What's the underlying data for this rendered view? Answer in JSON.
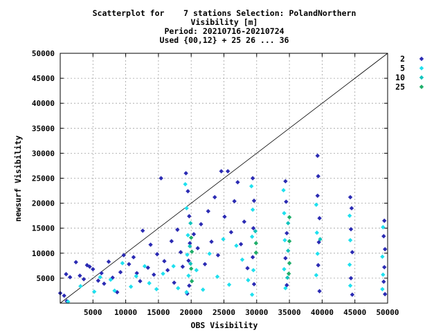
{
  "chart_data": {
    "type": "scatter",
    "title_lines": [
      "Scatterplot for    7 stations Selection: PolandNorthern",
      "Visibility [m]",
      "Period: 20210716-20210724",
      "Used {00,12} + 25 26 ... 36"
    ],
    "xlabel": "OBS Visibility",
    "ylabel": "newsurf Visibility",
    "xlim": [
      0,
      50000
    ],
    "ylim": [
      0,
      50000
    ],
    "x_ticks": [
      5000,
      10000,
      15000,
      20000,
      25000,
      30000,
      35000,
      40000,
      45000,
      50000
    ],
    "y_ticks": [
      5000,
      10000,
      15000,
      20000,
      25000,
      30000,
      35000,
      40000,
      45000,
      50000
    ],
    "x_tick_labels": [
      "5000",
      "10000",
      "15000",
      "20000",
      "25000",
      "30000",
      "35000",
      "40000",
      "45000",
      "50000"
    ],
    "y_tick_labels": [
      "5000",
      "10000",
      "15000",
      "20000",
      "25000",
      "30000",
      "35000",
      "40000",
      "45000",
      "50000"
    ],
    "grid": true,
    "reference_line": "y = x",
    "legend_position": "right, outside top",
    "series": [
      {
        "name": "2",
        "color": "#2b2bb3",
        "points": [
          [
            0,
            2000
          ],
          [
            600,
            1500
          ],
          [
            1000,
            400
          ],
          [
            900,
            5800
          ],
          [
            1500,
            5200
          ],
          [
            2400,
            8200
          ],
          [
            3000,
            5500
          ],
          [
            3600,
            4800
          ],
          [
            4100,
            7600
          ],
          [
            4500,
            7300
          ],
          [
            5000,
            6800
          ],
          [
            5800,
            4500
          ],
          [
            6300,
            6000
          ],
          [
            6700,
            3900
          ],
          [
            7400,
            8300
          ],
          [
            8000,
            5100
          ],
          [
            8700,
            2200
          ],
          [
            9200,
            6200
          ],
          [
            9700,
            9600
          ],
          [
            10500,
            7800
          ],
          [
            11200,
            9200
          ],
          [
            11700,
            6000
          ],
          [
            12200,
            4400
          ],
          [
            12600,
            14500
          ],
          [
            13400,
            7100
          ],
          [
            13800,
            11700
          ],
          [
            14300,
            5700
          ],
          [
            14800,
            9800
          ],
          [
            15400,
            25000
          ],
          [
            15900,
            8400
          ],
          [
            16400,
            6600
          ],
          [
            17000,
            12400
          ],
          [
            17400,
            4100
          ],
          [
            17900,
            14700
          ],
          [
            18400,
            10200
          ],
          [
            18700,
            7300
          ],
          [
            19200,
            26000
          ],
          [
            19500,
            22400
          ],
          [
            19700,
            17400
          ],
          [
            19800,
            12000
          ],
          [
            19600,
            8500
          ],
          [
            19700,
            3500
          ],
          [
            19400,
            1900
          ],
          [
            20400,
            13800
          ],
          [
            21000,
            11000
          ],
          [
            21500,
            15800
          ],
          [
            22100,
            7800
          ],
          [
            22600,
            18400
          ],
          [
            23100,
            12300
          ],
          [
            23600,
            21200
          ],
          [
            24100,
            9600
          ],
          [
            24600,
            26400
          ],
          [
            25100,
            17300
          ],
          [
            25600,
            26400
          ],
          [
            26100,
            14200
          ],
          [
            26600,
            20400
          ],
          [
            27100,
            24200
          ],
          [
            27600,
            11800
          ],
          [
            28100,
            16300
          ],
          [
            28600,
            7000
          ],
          [
            29400,
            25000
          ],
          [
            29600,
            20500
          ],
          [
            29500,
            15000
          ],
          [
            29400,
            9200
          ],
          [
            29600,
            3800
          ],
          [
            34400,
            24400
          ],
          [
            34500,
            20300
          ],
          [
            34600,
            14000
          ],
          [
            34400,
            9000
          ],
          [
            34600,
            3600
          ],
          [
            39300,
            29500
          ],
          [
            39400,
            25400
          ],
          [
            39300,
            21500
          ],
          [
            39600,
            17000
          ],
          [
            39500,
            12200
          ],
          [
            39400,
            7600
          ],
          [
            39600,
            2400
          ],
          [
            44300,
            21200
          ],
          [
            44500,
            19000
          ],
          [
            44400,
            14800
          ],
          [
            44600,
            10200
          ],
          [
            44400,
            5000
          ],
          [
            44600,
            1700
          ],
          [
            49500,
            16500
          ],
          [
            49400,
            13400
          ],
          [
            49600,
            10800
          ],
          [
            49500,
            7200
          ],
          [
            49400,
            4300
          ],
          [
            49600,
            1800
          ]
        ]
      },
      {
        "name": "5",
        "color": "#1fe0ee",
        "points": [
          [
            1200,
            300
          ],
          [
            3100,
            3400
          ],
          [
            5200,
            2300
          ],
          [
            6100,
            5200
          ],
          [
            7700,
            4700
          ],
          [
            8300,
            2500
          ],
          [
            9500,
            8000
          ],
          [
            10800,
            3300
          ],
          [
            11600,
            5400
          ],
          [
            12900,
            7400
          ],
          [
            13600,
            4000
          ],
          [
            14700,
            2800
          ],
          [
            15700,
            5900
          ],
          [
            17300,
            7400
          ],
          [
            18000,
            3000
          ],
          [
            19100,
            23800
          ],
          [
            19300,
            19000
          ],
          [
            19500,
            13600
          ],
          [
            19400,
            9700
          ],
          [
            19600,
            5500
          ],
          [
            19300,
            2200
          ],
          [
            20800,
            6600
          ],
          [
            21800,
            2700
          ],
          [
            22800,
            9900
          ],
          [
            24000,
            5300
          ],
          [
            24900,
            12800
          ],
          [
            25800,
            3700
          ],
          [
            26900,
            11500
          ],
          [
            27800,
            8700
          ],
          [
            28700,
            4600
          ],
          [
            29200,
            23400
          ],
          [
            29400,
            18700
          ],
          [
            29300,
            13300
          ],
          [
            29500,
            6600
          ],
          [
            29300,
            1700
          ],
          [
            34100,
            22600
          ],
          [
            34200,
            18000
          ],
          [
            34300,
            12600
          ],
          [
            34200,
            6800
          ],
          [
            34400,
            3000
          ],
          [
            39100,
            19700
          ],
          [
            39200,
            14100
          ],
          [
            39300,
            9900
          ],
          [
            39100,
            5600
          ],
          [
            44200,
            17500
          ],
          [
            44300,
            12600
          ],
          [
            44200,
            7700
          ],
          [
            44300,
            3500
          ],
          [
            49300,
            15200
          ],
          [
            49200,
            9300
          ],
          [
            49300,
            5700
          ],
          [
            49200,
            2800
          ]
        ]
      },
      {
        "name": "10",
        "color": "#12c4bd",
        "points": [
          [
            19900,
            16000
          ],
          [
            19800,
            11400
          ],
          [
            19900,
            7900
          ],
          [
            29800,
            14400
          ],
          [
            34800,
            16000
          ],
          [
            34800,
            10500
          ],
          [
            34700,
            5100
          ],
          [
            39700,
            12800
          ]
        ]
      },
      {
        "name": "25",
        "color": "#1fae6a",
        "points": [
          [
            20000,
            13100
          ],
          [
            20100,
            10300
          ],
          [
            20000,
            6900
          ],
          [
            20100,
            4400
          ],
          [
            29900,
            12000
          ],
          [
            29900,
            10100
          ],
          [
            35000,
            17200
          ],
          [
            35000,
            12400
          ],
          [
            35000,
            8000
          ],
          [
            34900,
            5900
          ]
        ]
      }
    ]
  }
}
